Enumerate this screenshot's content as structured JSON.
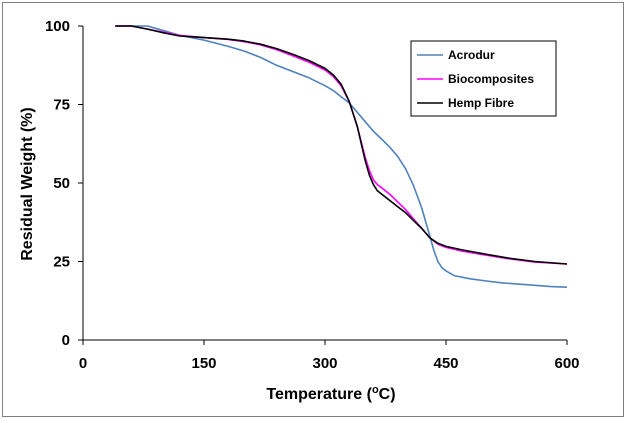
{
  "chart_data": {
    "type": "line",
    "title": "",
    "xlabel_main": "Temperature (",
    "xlabel_sup": "o",
    "xlabel_end": "C)",
    "ylabel": "Residual Weight (%)",
    "xlim": [
      0,
      600
    ],
    "ylim": [
      0,
      100
    ],
    "xticks": [
      0,
      150,
      300,
      450,
      600
    ],
    "yticks": [
      0,
      25,
      50,
      75,
      100
    ],
    "grid": false,
    "legend_position": "top-right",
    "series": [
      {
        "name": "Acrodur",
        "color": "#4f81bd",
        "x": [
          40,
          60,
          80,
          100,
          120,
          150,
          180,
          200,
          220,
          240,
          260,
          280,
          300,
          310,
          320,
          330,
          340,
          350,
          360,
          370,
          380,
          390,
          400,
          410,
          420,
          430,
          435,
          440,
          445,
          450,
          460,
          480,
          500,
          520,
          550,
          580,
          600
        ],
        "y": [
          100,
          100,
          100,
          98.5,
          97,
          95.5,
          93.5,
          92,
          90,
          87.5,
          85.5,
          83.5,
          81,
          79.5,
          77.5,
          75.5,
          72.5,
          69.5,
          66.5,
          64,
          61.5,
          58.5,
          54.5,
          49,
          42,
          33,
          28.5,
          25,
          23,
          22,
          20.5,
          19.5,
          18.8,
          18.2,
          17.6,
          17,
          16.8
        ]
      },
      {
        "name": "Biocomposites",
        "color": "#ff00ff",
        "x": [
          40,
          60,
          80,
          100,
          120,
          150,
          180,
          200,
          220,
          240,
          260,
          280,
          300,
          310,
          320,
          330,
          340,
          345,
          350,
          355,
          360,
          365,
          370,
          380,
          390,
          400,
          410,
          420,
          430,
          440,
          450,
          470,
          500,
          530,
          560,
          600
        ],
        "y": [
          100,
          100,
          99,
          98,
          97,
          96.3,
          95.7,
          95,
          94,
          92.5,
          90.5,
          88.5,
          86,
          84,
          81,
          76,
          68,
          63,
          58,
          54,
          51,
          49.5,
          48.5,
          46.5,
          44,
          41.5,
          38.5,
          35.5,
          32.5,
          30.5,
          29.5,
          28.3,
          27,
          25.8,
          24.8,
          24.2
        ]
      },
      {
        "name": "Hemp Fibre",
        "color": "#000000",
        "x": [
          40,
          60,
          80,
          100,
          120,
          150,
          180,
          200,
          220,
          240,
          260,
          280,
          300,
          310,
          320,
          330,
          340,
          345,
          350,
          355,
          360,
          365,
          370,
          380,
          390,
          400,
          410,
          420,
          430,
          440,
          450,
          470,
          500,
          530,
          560,
          600
        ],
        "y": [
          100,
          100,
          99,
          97.8,
          96.8,
          96.3,
          95.8,
          95.2,
          94.2,
          92.8,
          91,
          89,
          86.5,
          84.5,
          81.5,
          76,
          68,
          62.5,
          57,
          52.5,
          49.5,
          47.5,
          46.5,
          44.5,
          42.5,
          40.5,
          38,
          35.5,
          32.5,
          30.8,
          29.8,
          28.7,
          27.3,
          26,
          25,
          24.2
        ]
      }
    ]
  }
}
